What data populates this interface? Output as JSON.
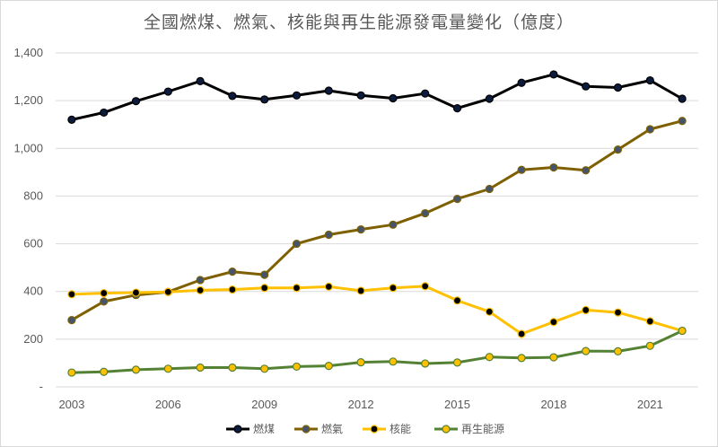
{
  "chart_data": {
    "type": "line",
    "title": "全國燃煤、燃氣、核能與再生能源發電量變化（億度）",
    "x": [
      2003,
      2004,
      2005,
      2006,
      2007,
      2008,
      2009,
      2010,
      2011,
      2012,
      2013,
      2014,
      2015,
      2016,
      2017,
      2018,
      2019,
      2020,
      2021,
      2022
    ],
    "x_tick_labels": [
      "2003",
      "2006",
      "2009",
      "2012",
      "2015",
      "2018",
      "2021"
    ],
    "y_tick_labels": [
      "-",
      "200",
      "400",
      "600",
      "800",
      "1,000",
      "1,200",
      "1,400"
    ],
    "ylim": [
      0,
      1400
    ],
    "grid": true,
    "legend": "bottom",
    "series": [
      {
        "name": "燃煤",
        "color": "#000000",
        "marker": "#0d1b3e",
        "values": [
          1120,
          1150,
          1198,
          1238,
          1282,
          1220,
          1205,
          1222,
          1242,
          1222,
          1210,
          1230,
          1168,
          1208,
          1275,
          1310,
          1260,
          1255,
          1285,
          1208
        ]
      },
      {
        "name": "燃氣",
        "color": "#7f6000",
        "marker": "#44546a",
        "values": [
          280,
          358,
          385,
          398,
          448,
          483,
          470,
          600,
          638,
          660,
          680,
          728,
          788,
          830,
          910,
          920,
          908,
          995,
          1080,
          1115
        ]
      },
      {
        "name": "核能",
        "color": "#ffc000",
        "marker": "#000000",
        "values": [
          388,
          393,
          395,
          398,
          405,
          408,
          415,
          415,
          420,
          403,
          415,
          422,
          362,
          315,
          222,
          272,
          322,
          312,
          275,
          235
        ]
      },
      {
        "name": "再生能源",
        "color": "#548235",
        "marker": "#ffc000",
        "values": [
          60,
          63,
          72,
          76,
          81,
          81,
          76,
          85,
          88,
          103,
          106,
          98,
          102,
          125,
          121,
          124,
          150,
          149,
          172,
          235
        ]
      }
    ]
  }
}
